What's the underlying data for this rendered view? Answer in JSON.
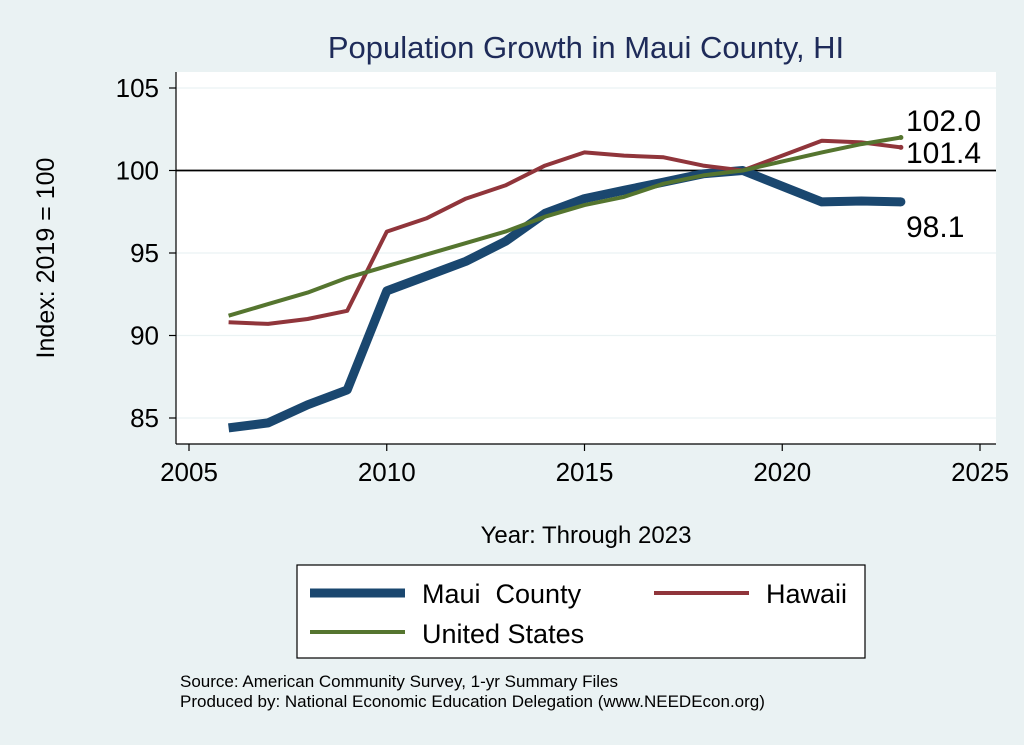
{
  "chart_data": {
    "type": "line",
    "title": "Population Growth in Maui County, HI",
    "xlabel": "Year: Through 2023",
    "ylabel": "Index: 2019 = 100",
    "xlim": [
      2005,
      2025
    ],
    "ylim": [
      83.5,
      106
    ],
    "x_ticks": [
      2005,
      2010,
      2015,
      2020,
      2025
    ],
    "y_ticks": [
      85,
      90,
      95,
      100,
      105
    ],
    "reference_line": 100,
    "grid": true,
    "legend_position": "bottom",
    "x": [
      2006,
      2007,
      2008,
      2009,
      2010,
      2011,
      2012,
      2013,
      2014,
      2015,
      2016,
      2017,
      2018,
      2019,
      2021,
      2022,
      2023
    ],
    "series": [
      {
        "name": "Maui  County",
        "color": "#1a476f",
        "width": 9,
        "values": [
          84.4,
          84.7,
          85.8,
          86.7,
          92.7,
          93.6,
          94.5,
          95.7,
          97.4,
          98.3,
          98.8,
          99.3,
          99.8,
          100.0,
          98.1,
          98.15,
          98.1
        ],
        "end_label": "98.1"
      },
      {
        "name": "Hawaii",
        "color": "#90353b",
        "width": 4,
        "values": [
          90.8,
          90.7,
          91.0,
          91.5,
          96.3,
          97.1,
          98.3,
          99.1,
          100.3,
          101.1,
          100.9,
          100.8,
          100.3,
          100.0,
          101.8,
          101.7,
          101.4
        ],
        "end_label": "101.4"
      },
      {
        "name": "United States",
        "color": "#55752f",
        "width": 4,
        "values": [
          91.2,
          91.9,
          92.6,
          93.5,
          94.2,
          94.9,
          95.6,
          96.3,
          97.2,
          97.9,
          98.4,
          99.2,
          99.7,
          100.0,
          101.1,
          101.6,
          102.0
        ],
        "end_label": "102.0"
      }
    ]
  },
  "footer": {
    "source": "Source: American Community Survey, 1-yr Summary Files",
    "produced_by": "Produced by: National Economic Education Delegation (www.NEEDEcon.org)"
  }
}
